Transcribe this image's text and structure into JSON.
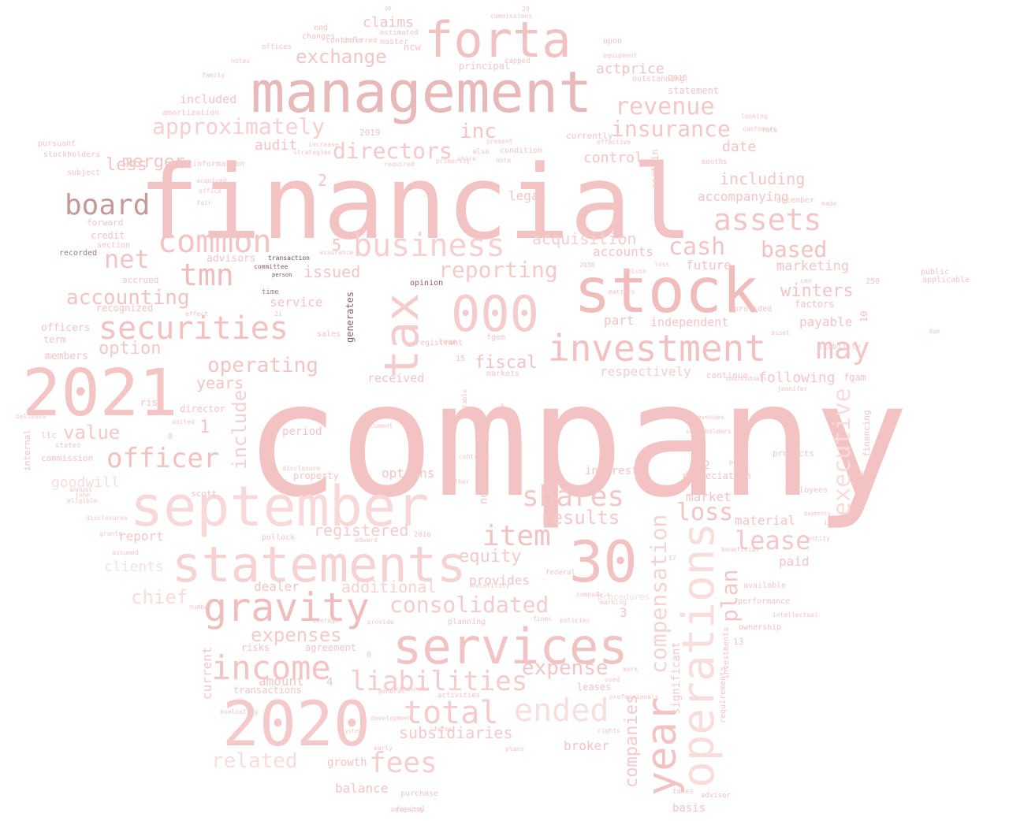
{
  "words": [
    {
      "text": "company",
      "color": "#f3c2c2"
    },
    {
      "text": "financial",
      "color": "#f3c2c2"
    },
    {
      "text": "management",
      "color": "#e8b9b9"
    },
    {
      "text": "stock",
      "color": "#f0bcbc"
    },
    {
      "text": "2021",
      "color": "#f3c5c5"
    },
    {
      "text": "september",
      "color": "#f7d9d9"
    },
    {
      "text": "forta",
      "color": "#f1c2c2"
    },
    {
      "text": "services",
      "color": "#f1c3c3"
    },
    {
      "text": "2020",
      "color": "#f4c9c9"
    },
    {
      "text": "statements",
      "color": "#f6d2d2"
    },
    {
      "text": "30",
      "color": "#f2c1c1"
    },
    {
      "text": "000",
      "color": "#f4cccc"
    },
    {
      "text": "investment",
      "color": "#f2c2c2"
    },
    {
      "text": "tax",
      "color": "#f4cccc"
    },
    {
      "text": "operations",
      "color": "#f8dddd"
    },
    {
      "text": "year",
      "color": "#f3c3c3"
    },
    {
      "text": "gravity",
      "color": "#f0bdbd"
    },
    {
      "text": "income",
      "color": "#f4c4c4"
    },
    {
      "text": "securities",
      "color": "#f3c1c1"
    },
    {
      "text": "business",
      "color": "#f6d0d0"
    },
    {
      "text": "common",
      "color": "#f3c4c4"
    },
    {
      "text": "assets",
      "color": "#f3c6c6"
    },
    {
      "text": "board",
      "color": "#c39a9a"
    },
    {
      "text": "may",
      "color": "#f4c5c5"
    },
    {
      "text": "officer",
      "color": "#f2c1c1"
    },
    {
      "text": "item",
      "color": "#f2c3c3"
    },
    {
      "text": "shares",
      "color": "#f3c7c7"
    },
    {
      "text": "total",
      "color": "#f5cccc"
    },
    {
      "text": "ended",
      "color": "#f8dfdf"
    },
    {
      "text": "liabilities",
      "color": "#f4cccc"
    },
    {
      "text": "executive",
      "color": "#f8dcdc"
    },
    {
      "text": "tmn",
      "color": "#efbcbc"
    },
    {
      "text": "net",
      "color": "#f3c4c4"
    },
    {
      "text": "revenue",
      "color": "#f4c8c8"
    },
    {
      "text": "insurance",
      "color": "#f3c7c7"
    },
    {
      "text": "fees",
      "color": "#f5cece"
    },
    {
      "text": "lease",
      "color": "#f4c8c8"
    },
    {
      "text": "consolidated",
      "color": "#f4cccc"
    },
    {
      "text": "compensation",
      "color": "#f6d3d3"
    },
    {
      "text": "loss",
      "color": "#f3c4c4"
    },
    {
      "text": "cash",
      "color": "#f3c4c4"
    },
    {
      "text": "based",
      "color": "#f3c2c2"
    },
    {
      "text": "plan",
      "color": "#f3c6c6"
    },
    {
      "text": "exchange",
      "color": "#f3c5c5"
    },
    {
      "text": "inc",
      "color": "#f3c5c5"
    },
    {
      "text": "directors",
      "color": "#f4c9c9"
    },
    {
      "text": "approximately",
      "color": "#f6d0d0"
    },
    {
      "text": "accounting",
      "color": "#f2c3c3"
    },
    {
      "text": "operating",
      "color": "#f3c5c5"
    },
    {
      "text": "reporting",
      "color": "#f4caca"
    },
    {
      "text": "results",
      "color": "#f4c9c9"
    },
    {
      "text": "expense",
      "color": "#f3c6c6"
    },
    {
      "text": "expenses",
      "color": "#f4caca"
    },
    {
      "text": "related",
      "color": "#f8dddd"
    },
    {
      "text": "chief",
      "color": "#f8dcdc"
    },
    {
      "text": "companies",
      "color": "#f4caca"
    },
    {
      "text": "subsidiaries",
      "color": "#f4c9c9"
    },
    {
      "text": "winters",
      "color": "#f3c4c4"
    },
    {
      "text": "equity",
      "color": "#f4c9c9"
    },
    {
      "text": "additional",
      "color": "#f6d2d2"
    },
    {
      "text": "value",
      "color": "#f4c9c9"
    },
    {
      "text": "option",
      "color": "#f4c8c8"
    },
    {
      "text": "include",
      "color": "#f6d0d0"
    },
    {
      "text": "issued",
      "color": "#f3c5c5"
    },
    {
      "text": "registered",
      "color": "#f5cccc"
    },
    {
      "text": "audit",
      "color": "#f3c4c4"
    },
    {
      "text": "control",
      "color": "#f3c5c5"
    },
    {
      "text": "including",
      "color": "#f3c6c6"
    },
    {
      "text": "acquisition",
      "color": "#f5cece"
    },
    {
      "text": "accounts",
      "color": "#f3c5c5"
    },
    {
      "text": "future",
      "color": "#f3c6c6"
    },
    {
      "text": "marketing",
      "color": "#f3c5c5"
    },
    {
      "text": "fiscal",
      "color": "#f2c3c3"
    },
    {
      "text": "years",
      "color": "#f3c5c5"
    },
    {
      "text": "part",
      "color": "#f3c5c5"
    },
    {
      "text": "independent",
      "color": "#f3c5c5"
    },
    {
      "text": "payable",
      "color": "#f3c5c5"
    },
    {
      "text": "following",
      "color": "#f4c8c8"
    },
    {
      "text": "respectively",
      "color": "#f5cece"
    },
    {
      "text": "actprice",
      "color": "#f3c4c4"
    },
    {
      "text": "claims",
      "color": "#f3c5c5"
    },
    {
      "text": "date",
      "color": "#f3c5c5"
    },
    {
      "text": "accompanying",
      "color": "#f3c5c5"
    },
    {
      "text": "legal",
      "color": "#f3c5c5"
    },
    {
      "text": "goodwill",
      "color": "#f8dcdc"
    },
    {
      "text": "report",
      "color": "#f4c8c8"
    },
    {
      "text": "clients",
      "color": "#f8e0e0"
    },
    {
      "text": "dealer",
      "color": "#f3c5c5"
    },
    {
      "text": "options",
      "color": "#f3c5c5"
    },
    {
      "text": "market",
      "color": "#f3c5c5"
    },
    {
      "text": "material",
      "color": "#f3c5c5"
    },
    {
      "text": "paid",
      "color": "#f3c5c5"
    },
    {
      "text": "provides",
      "color": "#f3c5c5"
    },
    {
      "text": "broker",
      "color": "#f3c5c5"
    },
    {
      "text": "balance",
      "color": "#f3c5c5"
    },
    {
      "text": "growth",
      "color": "#f3c5c5"
    },
    {
      "text": "amount",
      "color": "#f3c5c5"
    },
    {
      "text": "agreement",
      "color": "#f3c5c5"
    },
    {
      "text": "risks",
      "color": "#f3c5c5"
    },
    {
      "text": "transactions",
      "color": "#f3c5c5"
    },
    {
      "text": "current",
      "color": "#f4c8c8"
    },
    {
      "text": "service",
      "color": "#f3c5c5"
    },
    {
      "text": "period",
      "color": "#f3c5c5"
    },
    {
      "text": "interest",
      "color": "#f3c5c5"
    },
    {
      "text": "property",
      "color": "#f3c5c5"
    },
    {
      "text": "depreciation",
      "color": "#f3c5c5"
    },
    {
      "text": "included",
      "color": "#f3c5c5"
    },
    {
      "text": "received",
      "color": "#f3c5c5"
    },
    {
      "text": "significant",
      "color": "#f4c8c8"
    },
    {
      "text": "basis",
      "color": "#f3c5c5"
    },
    {
      "text": "advisors",
      "color": "#f3c5c5"
    },
    {
      "text": "officers",
      "color": "#f3c5c5"
    },
    {
      "text": "members",
      "color": "#f3c5c5"
    },
    {
      "text": "term",
      "color": "#f3c5c5"
    },
    {
      "text": "recognized",
      "color": "#f3c5c5"
    },
    {
      "text": "accrued",
      "color": "#f3c5c5"
    },
    {
      "text": "commission",
      "color": "#f3c5c5"
    },
    {
      "text": "internal",
      "color": "#f3c5c5"
    },
    {
      "text": "llc",
      "color": "#f3c5c5"
    },
    {
      "text": "director",
      "color": "#f3c5c5"
    },
    {
      "text": "scott",
      "color": "#f3c5c5"
    },
    {
      "text": "risk",
      "color": "#f3c5c5"
    },
    {
      "text": "factors",
      "color": "#f3c5c5"
    },
    {
      "text": "fgam",
      "color": "#f3c5c5"
    },
    {
      "text": "lyon",
      "color": "#f3c5c5"
    },
    {
      "text": "products",
      "color": "#f3c5c5"
    },
    {
      "text": "employees",
      "color": "#f3c5c5"
    },
    {
      "text": "financing",
      "color": "#f3c5c5"
    },
    {
      "text": "procedures",
      "color": "#f8dddd"
    },
    {
      "text": "leases",
      "color": "#f3c5c5"
    },
    {
      "text": "ncw",
      "color": "#f3c5c5"
    },
    {
      "text": "upon",
      "color": "#f3c5c5"
    },
    {
      "text": "principal",
      "color": "#f3c5c5"
    },
    {
      "text": "end",
      "color": "#f3c5c5"
    },
    {
      "text": "changes",
      "color": "#f3c5c5"
    },
    {
      "text": "controls",
      "color": "#f3c5c5"
    },
    {
      "text": "deferred",
      "color": "#f3c5c5"
    },
    {
      "text": "estimated",
      "color": "#f3c5c5"
    },
    {
      "text": "master",
      "color": "#f3c5c5"
    },
    {
      "text": "statement",
      "color": "#f3c5c5"
    },
    {
      "text": "2015",
      "color": "#f3c5c5"
    },
    {
      "text": "outstanding",
      "color": "#f3c5c5"
    },
    {
      "text": "currently",
      "color": "#f3c5c5"
    },
    {
      "text": "2019",
      "color": "#f3c5c5"
    },
    {
      "text": "condition",
      "color": "#f3c5c5"
    },
    {
      "text": "certain",
      "color": "#f3c5c5"
    },
    {
      "text": "months",
      "color": "#f3c5c5"
    },
    {
      "text": "december",
      "color": "#f3c5c5"
    },
    {
      "text": "amortization",
      "color": "#f3c5c5"
    },
    {
      "text": "pursuant",
      "color": "#f3c5c5"
    },
    {
      "text": "stockholders",
      "color": "#f3c5c5"
    },
    {
      "text": "subject",
      "color": "#f3c5c5"
    },
    {
      "text": "information",
      "color": "#f3c5c5"
    },
    {
      "text": "forward",
      "color": "#f3c5c5"
    },
    {
      "text": "credit",
      "color": "#f3c5c5"
    },
    {
      "text": "section",
      "color": "#f3c5c5"
    },
    {
      "text": "recorded",
      "color": "#a07a7a"
    },
    {
      "text": "time",
      "color": "#a07a7a"
    },
    {
      "text": "committee",
      "color": "#8c6060"
    },
    {
      "text": "transaction",
      "color": "#6e4e4e"
    },
    {
      "text": "person",
      "color": "#6e4e4e"
    },
    {
      "text": "opinion",
      "color": "#8c6060"
    },
    {
      "text": "generates",
      "color": "#8c6060"
    },
    {
      "text": "sales",
      "color": "#f3c5c5"
    },
    {
      "text": "registrant",
      "color": "#f3c5c5"
    },
    {
      "text": "loan",
      "color": "#f3c5c5"
    },
    {
      "text": "fgem",
      "color": "#f3c5c5"
    },
    {
      "text": "markets",
      "color": "#f3c5c5"
    },
    {
      "text": "continue",
      "color": "#f3c5c5"
    },
    {
      "text": "liability",
      "color": "#f3c5c5"
    },
    {
      "text": "provided",
      "color": "#f3c5c5"
    },
    {
      "text": "none",
      "color": "#f3c5c5"
    },
    {
      "text": "pollock",
      "color": "#f3c5c5"
    },
    {
      "text": "2016",
      "color": "#f3c5c5"
    },
    {
      "text": "available",
      "color": "#f3c5c5"
    },
    {
      "text": "ownership",
      "color": "#f3c5c5"
    },
    {
      "text": "performance",
      "color": "#f3c5c5"
    },
    {
      "text": "planning",
      "color": "#f3c5c5"
    },
    {
      "text": "purchase",
      "color": "#f3c5c5"
    },
    {
      "text": "capital",
      "color": "#f3c5c5"
    },
    {
      "text": "advisory",
      "color": "#f3c5c5"
    },
    {
      "text": "requirements",
      "color": "#f3c5c5"
    },
    {
      "text": "investments",
      "color": "#f3c5c5"
    },
    {
      "text": "advisor",
      "color": "#f3c5c5"
    },
    {
      "text": "taxes",
      "color": "#f3c5c5"
    },
    {
      "text": "public",
      "color": "#f3c5c5"
    },
    {
      "text": "applicable",
      "color": "#f3c5c5"
    },
    {
      "text": "250",
      "color": "#f3c5c5"
    },
    {
      "text": "less",
      "color": "#f3c5c5"
    },
    {
      "text": "merger",
      "color": "#f3c5c5"
    },
    {
      "text": "1",
      "color": "#f3c5c5"
    },
    {
      "text": "5",
      "color": "#f3c5c5"
    },
    {
      "text": "2",
      "color": "#f3c5c5"
    },
    {
      "text": "3",
      "color": "#f3c5c5"
    },
    {
      "text": "4",
      "color": "#f3c5c5"
    },
    {
      "text": "0",
      "color": "#f3c5c5"
    },
    {
      "text": "10",
      "color": "#f3c5c5"
    },
    {
      "text": "12",
      "color": "#f3c5c5"
    },
    {
      "text": "13",
      "color": "#f3c5c5"
    },
    {
      "text": "15",
      "color": "#f3c5c5"
    },
    {
      "text": "8",
      "color": "#f3c5c5"
    },
    {
      "text": "20",
      "color": "#f3c5c5"
    },
    {
      "text": "00",
      "color": "#f3c5c5"
    },
    {
      "text": "commissions",
      "color": "#f3c5c5"
    },
    {
      "text": "offices",
      "color": "#f3c5c5"
    },
    {
      "text": "notes",
      "color": "#f3c5c5"
    },
    {
      "text": "family",
      "color": "#f3c5c5"
    },
    {
      "text": "capped",
      "color": "#f3c5c5"
    },
    {
      "text": "average",
      "color": "#f3c5c5"
    },
    {
      "text": "disclosure",
      "color": "#f3c5c5"
    },
    {
      "text": "payments",
      "color": "#f3c5c5"
    },
    {
      "text": "disclosures",
      "color": "#f3c5c5"
    },
    {
      "text": "eligible",
      "color": "#f3c5c5"
    },
    {
      "text": "john",
      "color": "#f3c5c5"
    },
    {
      "text": "annual",
      "color": "#f3c5c5"
    },
    {
      "text": "united",
      "color": "#f3c5c5"
    },
    {
      "text": "states",
      "color": "#f3c5c5"
    },
    {
      "text": "assumed",
      "color": "#f3c5c5"
    },
    {
      "text": "grants",
      "color": "#f3c5c5"
    },
    {
      "text": "number",
      "color": "#f3c5c5"
    },
    {
      "text": "effect",
      "color": "#f3c5c5"
    },
    {
      "text": "acquired",
      "color": "#f3c5c5"
    },
    {
      "text": "office",
      "color": "#f3c5c5"
    },
    {
      "text": "fair",
      "color": "#f3c5c5"
    },
    {
      "text": "strategies",
      "color": "#f3c5c5"
    },
    {
      "text": "increase",
      "color": "#f3c5c5"
    },
    {
      "text": "required",
      "color": "#f3c5c5"
    },
    {
      "text": "effective",
      "color": "#f3c5c5"
    },
    {
      "text": "share",
      "color": "#f3c5c5"
    },
    {
      "text": "primarily",
      "color": "#f3c5c5"
    },
    {
      "text": "also",
      "color": "#f3c5c5"
    },
    {
      "text": "note",
      "color": "#f3c5c5"
    },
    {
      "text": "present",
      "color": "#f3c5c5"
    },
    {
      "text": "equipment",
      "color": "#f3c5c5"
    },
    {
      "text": "looking",
      "color": "#f3c5c5"
    },
    {
      "text": "customers",
      "color": "#f3c5c5"
    },
    {
      "text": "rate",
      "color": "#f3c5c5"
    },
    {
      "text": "made",
      "color": "#f3c5c5"
    },
    {
      "text": "jennifer",
      "color": "#f3c5c5"
    },
    {
      "text": "asset",
      "color": "#f3c5c5"
    },
    {
      "text": "mark",
      "color": "#f3c5c5"
    },
    {
      "text": "used",
      "color": "#f3c5c5"
    },
    {
      "text": "professionals",
      "color": "#f3c5c5"
    },
    {
      "text": "rights",
      "color": "#f3c5c5"
    },
    {
      "text": "costs",
      "color": "#f3c5c5"
    },
    {
      "text": "entity",
      "color": "#f3c5c5"
    },
    {
      "text": "indicate",
      "color": "#f3c5c5"
    },
    {
      "text": "beneficial",
      "color": "#f3c5c5"
    },
    {
      "text": "penny",
      "color": "#f3c5c5"
    },
    {
      "text": "shareholders",
      "color": "#f3c5c5"
    },
    {
      "text": "revenues",
      "color": "#f3c5c5"
    },
    {
      "text": "activities",
      "color": "#f3c5c5"
    },
    {
      "text": "system",
      "color": "#f3c5c5"
    },
    {
      "text": "development",
      "color": "#f3c5c5"
    },
    {
      "text": "federal",
      "color": "#f3c5c5"
    },
    {
      "text": "fines",
      "color": "#f3c5c5"
    },
    {
      "text": "volatility",
      "color": "#f3c5c5"
    },
    {
      "text": "provide",
      "color": "#f3c5c5"
    },
    {
      "text": "general",
      "color": "#f3c5c5"
    },
    {
      "text": "policies",
      "color": "#f3c5c5"
    },
    {
      "text": "fgfos",
      "color": "#f3c5c5"
    },
    {
      "text": "table",
      "color": "#f3c5c5"
    },
    {
      "text": "contract",
      "color": "#f3c5c5"
    },
    {
      "text": "whether",
      "color": "#f3c5c5"
    },
    {
      "text": "evaluating",
      "color": "#f3c5c5"
    },
    {
      "text": "resources",
      "color": "#f3c5c5"
    },
    {
      "text": "plans",
      "color": "#f3c5c5"
    },
    {
      "text": "early",
      "color": "#f3c5c5"
    },
    {
      "text": "edward",
      "color": "#f3c5c5"
    },
    {
      "text": "loss",
      "color": "#f3c5c5"
    },
    {
      "text": "2030",
      "color": "#f3c5c5"
    },
    {
      "text": "matters",
      "color": "#f3c5c5"
    },
    {
      "text": "nelson",
      "color": "#f3c5c5"
    },
    {
      "text": "ceo",
      "color": "#f3c5c5"
    },
    {
      "text": "individuals",
      "color": "#f3c5c5"
    },
    {
      "text": "company's",
      "color": "#f3c5c5"
    },
    {
      "text": "marking",
      "color": "#f3c5c5"
    },
    {
      "text": "assurance",
      "color": "#f3c5c5"
    },
    {
      "text": "due",
      "color": "#f3c5c5"
    },
    {
      "text": "intellectual",
      "color": "#f3c5c5"
    },
    {
      "text": "believes",
      "color": "#f3c5c5"
    },
    {
      "text": "document",
      "color": "#f3c5c5"
    },
    {
      "text": "17",
      "color": "#f3c5c5"
    },
    {
      "text": "7",
      "color": "#f3c5c5"
    },
    {
      "text": "6",
      "color": "#f3c5c5"
    },
    {
      "text": "21",
      "color": "#f3c5c5"
    },
    {
      "text": "fb",
      "color": "#f3c5c5"
    },
    {
      "text": "ab",
      "color": "#f3c5c5"
    },
    {
      "text": "pop",
      "color": "#f3c5c5"
    }
  ]
}
